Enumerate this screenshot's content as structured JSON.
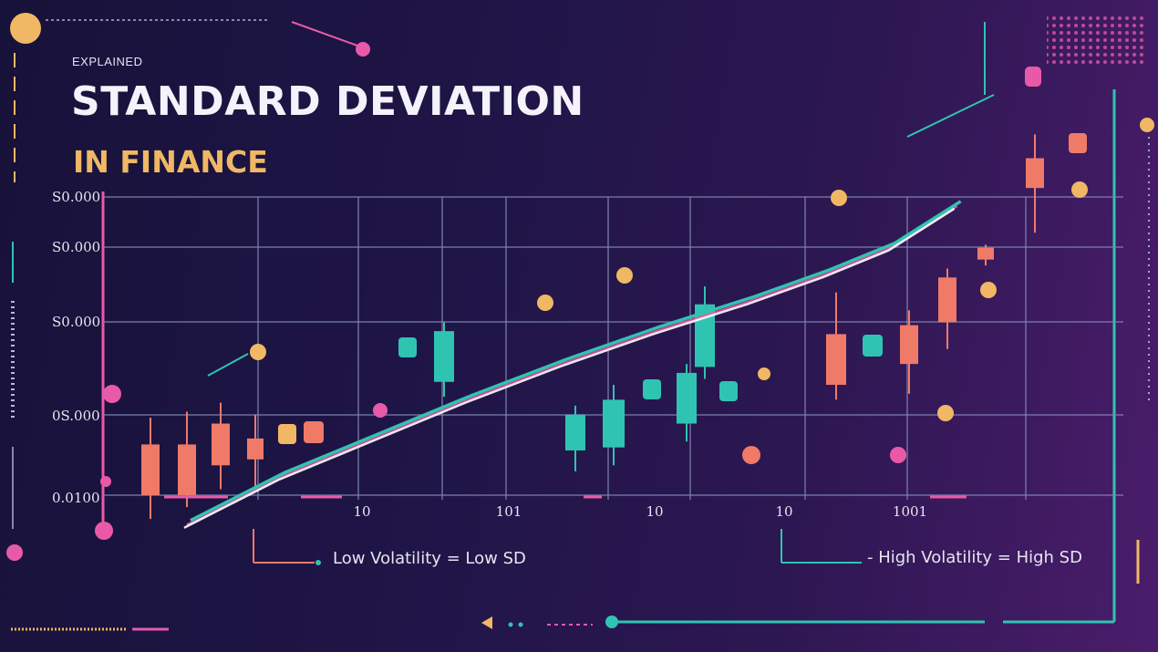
{
  "header": {
    "eyebrow": "EXPLAINED",
    "title": "STANDARD DEVIATION",
    "subtitle": "IN FINANCE"
  },
  "legend": {
    "low": "Low Volatility = Low SD",
    "high": "- High Volatility = High SD"
  },
  "colors": {
    "background": "#1d1545",
    "grid": "#7d86b0",
    "teal": "#2fc4b2",
    "coral": "#f07a68",
    "pink": "#e85aa8",
    "gold": "#f0b864",
    "trend": "#ffffff"
  },
  "chart_data": {
    "type": "bar",
    "y_tick_labels": [
      "S0.000",
      "S0.000",
      "S0.000",
      "0S.000",
      "0.0100"
    ],
    "x_tick_labels": [
      "10",
      "101",
      "10",
      "10",
      "1001"
    ],
    "y_range": [
      0,
      100
    ],
    "grid": true,
    "candles": [
      {
        "color": "coral",
        "open": 0,
        "close": 17,
        "low": -8,
        "high": 26
      },
      {
        "color": "coral",
        "open": 0,
        "close": 17,
        "low": -4,
        "high": 28
      },
      {
        "color": "coral",
        "open": 10,
        "close": 24,
        "low": 2,
        "high": 31
      },
      {
        "color": "coral",
        "open": 12,
        "close": 19,
        "low": 3,
        "high": 27
      },
      {
        "color": "teal",
        "open": 38,
        "close": 55,
        "low": 33,
        "high": 58
      },
      {
        "color": "teal",
        "open": 15,
        "close": 27,
        "low": 8,
        "high": 30
      },
      {
        "color": "teal",
        "open": 16,
        "close": 32,
        "low": 10,
        "high": 37
      },
      {
        "color": "teal",
        "open": 24,
        "close": 41,
        "low": 18,
        "high": 44
      },
      {
        "color": "teal",
        "open": 43,
        "close": 64,
        "low": 39,
        "high": 70
      },
      {
        "color": "coral",
        "open": 37,
        "close": 54,
        "low": 32,
        "high": 68
      },
      {
        "color": "coral",
        "open": 44,
        "close": 57,
        "low": 34,
        "high": 62
      },
      {
        "color": "coral",
        "open": 58,
        "close": 73,
        "low": 49,
        "high": 76
      },
      {
        "color": "coral",
        "open": 79,
        "close": 83,
        "low": 77,
        "high": 84
      },
      {
        "color": "coral",
        "open": 103,
        "close": 113,
        "low": 88,
        "high": 121
      }
    ],
    "trend": [
      [
        0,
        -10
      ],
      [
        10,
        6
      ],
      [
        20,
        19
      ],
      [
        30,
        32
      ],
      [
        40,
        44
      ],
      [
        50,
        55
      ],
      [
        60,
        65
      ],
      [
        68,
        74
      ],
      [
        75,
        83
      ],
      [
        82,
        97
      ]
    ]
  }
}
